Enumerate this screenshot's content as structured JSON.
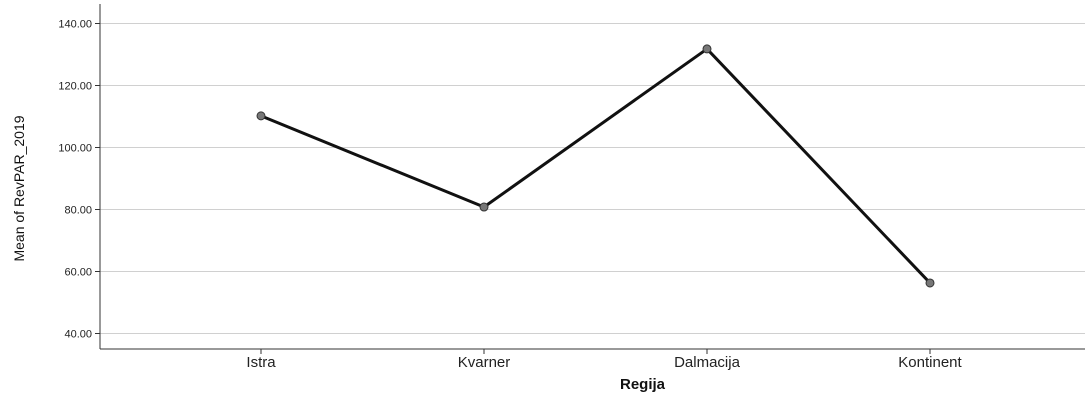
{
  "chart_data": {
    "type": "line",
    "title": "",
    "xlabel": "Regija",
    "ylabel": "Mean of RevPAR_2019",
    "categories": [
      "Istra",
      "Kvarner",
      "Dalmacija",
      "Kontinent"
    ],
    "series": [
      {
        "values": [
          110.2,
          80.8,
          131.8,
          56.3
        ]
      }
    ],
    "ylim": [
      35,
      145
    ],
    "yticks": [
      40,
      60,
      80,
      100,
      120,
      140
    ],
    "ytick_labels": [
      "40.00",
      "60.00",
      "80.00",
      "100.00",
      "120.00",
      "140.00"
    ],
    "grid": true,
    "line_color": "#111111",
    "marker_color": "#777777",
    "gridline_color": "#d0d0d0"
  }
}
